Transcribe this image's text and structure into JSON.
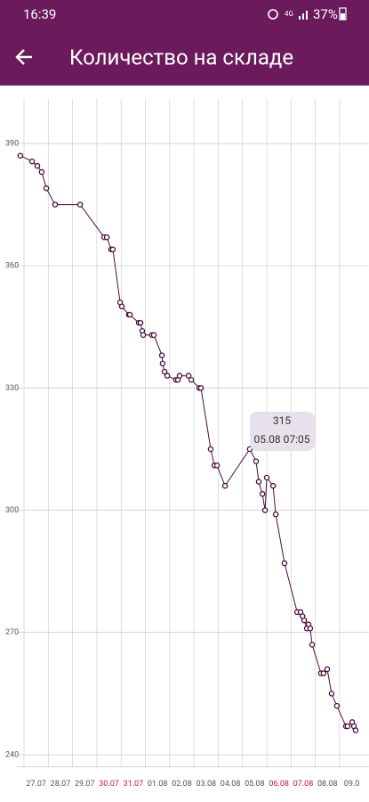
{
  "status_bar": {
    "time": "16:39",
    "battery": "37%"
  },
  "app_bar": {
    "title": "Количество на складе"
  },
  "chart_data": {
    "type": "line",
    "color": "#4a0d3a",
    "grid": true,
    "x": [
      -0.15,
      0.33,
      0.55,
      0.73,
      0.92,
      1.28,
      2.31,
      3.3,
      3.41,
      3.59,
      3.66,
      3.96,
      4.03,
      4.32,
      4.36,
      4.73,
      4.8,
      4.87,
      4.91,
      5.27,
      5.35,
      5.68,
      5.71,
      5.79,
      5.9,
      6.26,
      6.34,
      6.41,
      6.78,
      6.89,
      7.22,
      7.29,
      7.69,
      7.84,
      7.95,
      8.28,
      9.3,
      9.56,
      9.67,
      9.82,
      9.93,
      10.0,
      10.26,
      10.37,
      10.73,
      11.25,
      11.39,
      11.47,
      11.54,
      11.65,
      11.72,
      11.79,
      11.87,
      12.23,
      12.34,
      12.49,
      12.67,
      12.89,
      13.26,
      13.33,
      13.52,
      13.59,
      13.66
    ],
    "values": [
      387,
      385.6,
      384.5,
      383,
      379,
      375,
      375,
      367,
      367,
      364,
      364,
      351,
      350,
      348,
      348,
      346,
      346,
      344,
      343,
      343,
      343,
      338,
      336,
      334,
      333,
      332,
      332,
      333,
      333,
      332,
      330,
      330,
      315,
      311,
      311,
      306,
      315,
      312,
      307,
      304,
      300,
      308,
      306,
      299,
      287,
      275,
      275,
      274,
      273,
      271,
      272,
      271,
      267,
      260,
      260,
      261,
      255,
      252,
      247,
      247,
      248,
      247,
      246
    ],
    "xlim": [
      -0.3,
      14.2
    ],
    "ylim": [
      237,
      401
    ],
    "yticks": [
      390,
      360,
      330,
      300,
      270,
      240
    ],
    "xticks": [
      {
        "value": 0,
        "label": "27.07",
        "color": "#555555"
      },
      {
        "value": 1,
        "label": "28.07",
        "color": "#555555"
      },
      {
        "value": 2,
        "label": "29.07",
        "color": "#555555"
      },
      {
        "value": 3,
        "label": "30.07",
        "color": "#c2185b"
      },
      {
        "value": 4,
        "label": "31.07",
        "color": "#c2185b"
      },
      {
        "value": 5,
        "label": "01.08",
        "color": "#555555"
      },
      {
        "value": 6,
        "label": "02.08",
        "color": "#555555"
      },
      {
        "value": 7,
        "label": "03.08",
        "color": "#555555"
      },
      {
        "value": 8,
        "label": "04.08",
        "color": "#555555"
      },
      {
        "value": 9,
        "label": "05.08",
        "color": "#555555"
      },
      {
        "value": 10,
        "label": "06.08",
        "color": "#c2185b"
      },
      {
        "value": 11,
        "label": "07.08",
        "color": "#c2185b"
      },
      {
        "value": 12,
        "label": "08.08",
        "color": "#555555"
      },
      {
        "value": 13,
        "label": "09.0",
        "color": "#555555"
      }
    ],
    "tooltip": {
      "value": 315,
      "label": "05.08 07:05"
    }
  }
}
